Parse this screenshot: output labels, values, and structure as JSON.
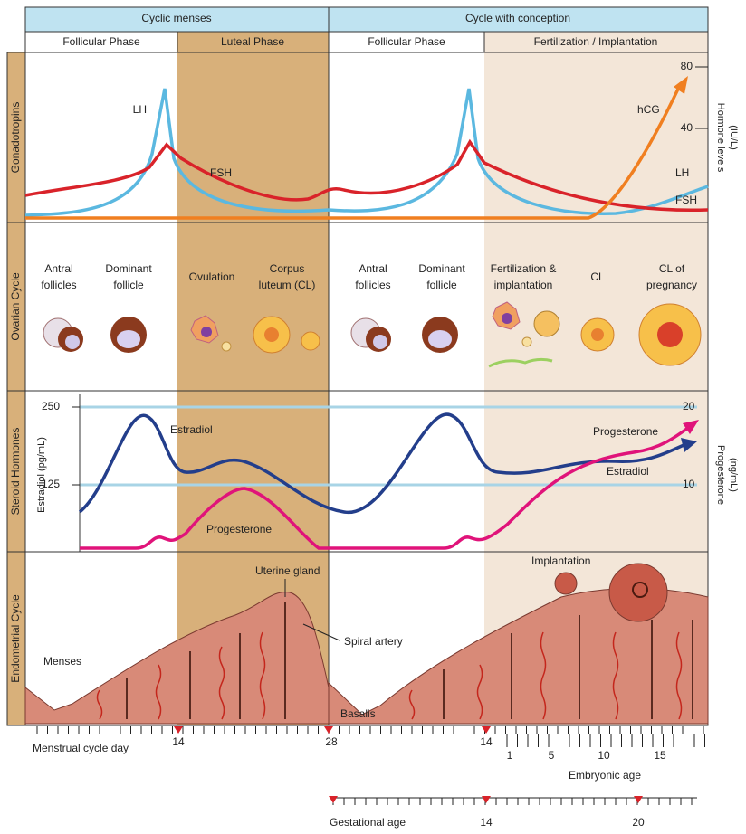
{
  "header": {
    "left": "Cyclic menses",
    "right": "Cycle with conception"
  },
  "phases": [
    "Follicular Phase",
    "Luteal Phase",
    "Follicular Phase",
    "Fertilization / Implantation"
  ],
  "rows": [
    "Gonadotropins",
    "Ovarian Cycle",
    "Steroid Hormones",
    "Endometrial Cycle"
  ],
  "gonadotropins": {
    "axis_title": [
      "Hormone levels",
      "(IU/L)"
    ],
    "ticks": [
      80,
      40
    ],
    "labels": {
      "lh_left": "LH",
      "fsh_left": "FSH",
      "hcg": "hCG",
      "lh_right": "LH",
      "fsh_right": "FSH"
    }
  },
  "ovarian": {
    "stages": [
      [
        "Antral",
        "follicles"
      ],
      [
        "Dominant",
        "follicle"
      ],
      [
        "Ovulation"
      ],
      [
        "Corpus",
        "luteum (CL)"
      ],
      [
        "Antral",
        "follicles"
      ],
      [
        "Dominant",
        "follicle"
      ],
      [
        "Fertilization &",
        "implantation"
      ],
      [
        "CL"
      ],
      [
        "CL of",
        "pregnancy"
      ]
    ]
  },
  "steroid": {
    "left_axis": "Estradiol (pg/mL)",
    "left_ticks": [
      250,
      125
    ],
    "right_axis": [
      "Progesterone",
      "(ng/mL)"
    ],
    "right_ticks": [
      20,
      10
    ],
    "labels": {
      "estradiol_left": "Estradiol",
      "progesterone_left": "Progesterone",
      "progesterone_right": "Progesterone",
      "estradiol_right": "Estradiol"
    }
  },
  "endometrial": {
    "labels": {
      "gland": "Uterine gland",
      "artery": "Spiral artery",
      "menses": "Menses",
      "implantation": "Implantation",
      "basalis": "Basalis"
    }
  },
  "axes": {
    "menstrual": {
      "title": "Menstrual cycle day",
      "ticks": [
        14,
        28,
        14
      ]
    },
    "embryonic": {
      "title": "Embryonic age",
      "ticks": [
        1,
        5,
        10,
        15
      ]
    },
    "gestational": {
      "title": "Gestational age",
      "ticks": [
        14,
        20
      ]
    }
  }
}
